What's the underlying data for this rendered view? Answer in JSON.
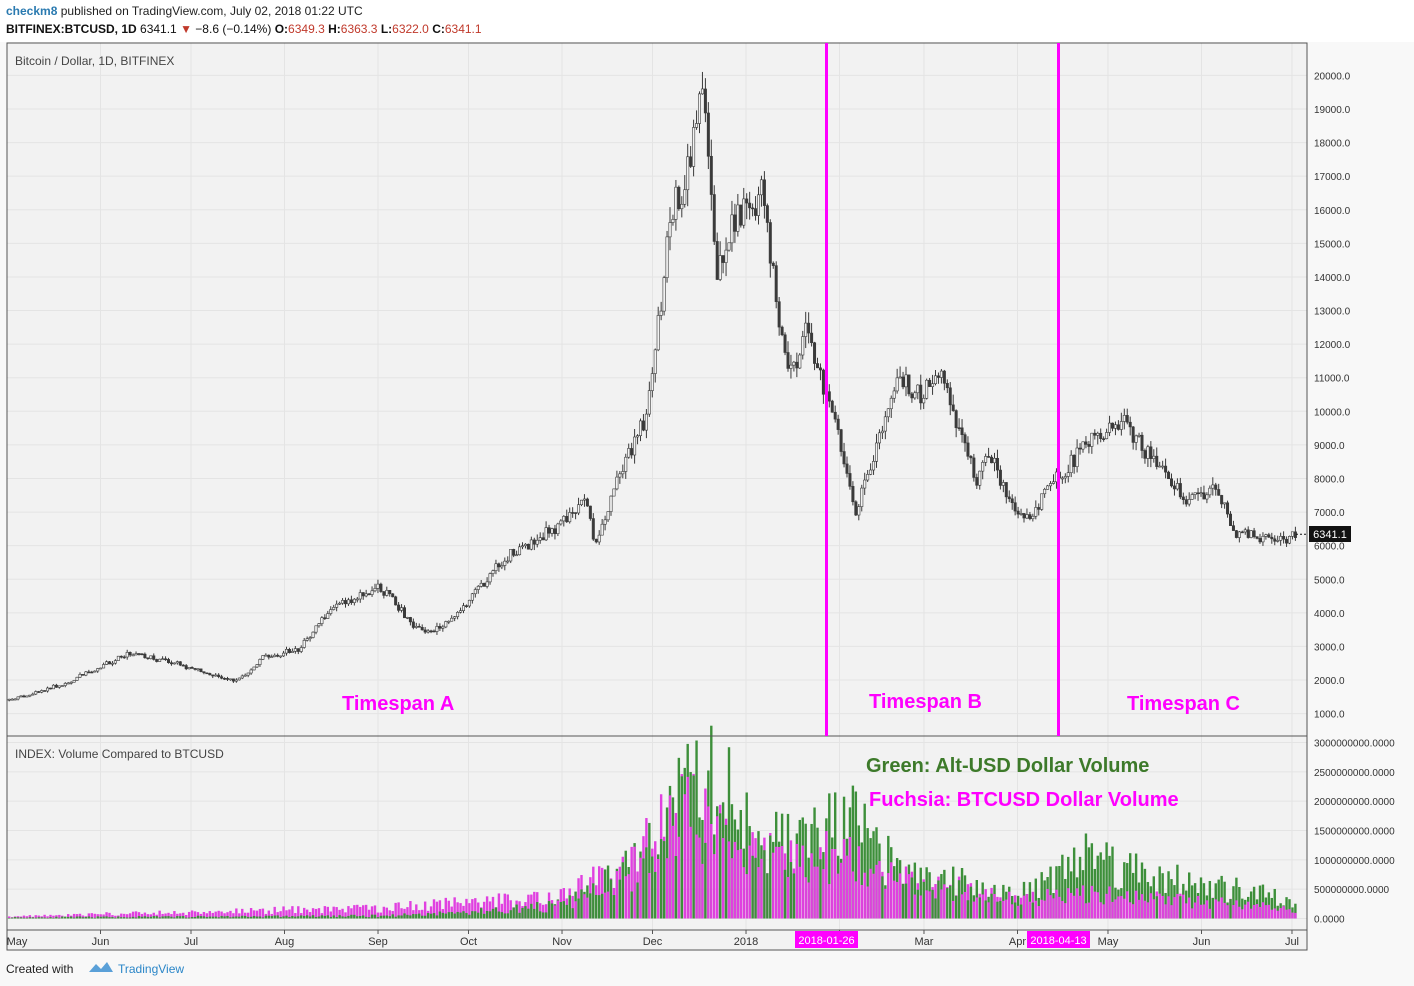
{
  "header": {
    "user": "checkm8",
    "published": "published on TradingView.com, July 02, 2018 01:22 UTC",
    "symbol": "BITFINEX:BTCUSD, 1D",
    "last": "6341.1",
    "change_arrow": "▼",
    "change": "−8.6 (−0.14%)",
    "o_label": "O:",
    "o_val": "6349.3",
    "h_label": "H:",
    "h_val": "6363.3",
    "l_label": "L:",
    "l_val": "6322.0",
    "c_label": "C:",
    "c_val": "6341.1"
  },
  "main_pane": {
    "title": "Bitcoin / Dollar, 1D, BITFINEX",
    "price_label": "6341.1",
    "annotations": [
      "Timespan A",
      "Timespan B",
      "Timespan C"
    ],
    "vline_dates": [
      "2018-01-26",
      "2018-04-13"
    ]
  },
  "volume_pane": {
    "title": "INDEX: Volume Compared to BTCUSD",
    "legend_green": "Green: Alt-USD Dollar Volume",
    "legend_fuchsia": "Fuchsia: BTCUSD Dollar Volume"
  },
  "footer": {
    "created": "Created with",
    "brand": "TradingView"
  },
  "colors": {
    "candle": "#3a3a3a",
    "annotation": "#ff00ff",
    "alt_volume": "#3d8f3a",
    "btc_volume": "#e040e0",
    "vline": "#ff00ff"
  },
  "chart_data": [
    {
      "type": "line",
      "title": "Bitcoin / Dollar, 1D, BITFINEX",
      "x_ticks": [
        "May",
        "Jun",
        "Jul",
        "Aug",
        "Sep",
        "Oct",
        "Nov",
        "Dec",
        "2018",
        "Feb",
        "Mar",
        "Apr",
        "May",
        "Jun",
        "Jul"
      ],
      "y_ticks": [
        "1000.0",
        "2000.0",
        "3000.0",
        "4000.0",
        "5000.0",
        "6000.0",
        "7000.0",
        "8000.0",
        "9000.0",
        "10000.0",
        "11000.0",
        "12000.0",
        "13000.0",
        "14000.0",
        "15000.0",
        "16000.0",
        "17000.0",
        "18000.0",
        "19000.0",
        "20000.0"
      ],
      "ylim": [
        0,
        20600
      ],
      "series": [
        {
          "x": [
            "2017-05-01",
            "2017-05-20",
            "2017-06-10",
            "2017-06-25",
            "2017-07-16",
            "2017-07-25",
            "2017-08-05",
            "2017-08-17",
            "2017-09-01",
            "2017-09-15",
            "2017-09-25",
            "2017-10-12",
            "2017-10-20",
            "2017-11-01",
            "2017-11-08",
            "2017-11-12",
            "2017-11-20",
            "2017-11-29",
            "2017-12-07",
            "2017-12-12",
            "2017-12-17",
            "2017-12-22",
            "2017-12-27",
            "2018-01-06",
            "2018-01-12",
            "2018-01-16",
            "2018-01-20",
            "2018-02-01",
            "2018-02-06",
            "2018-02-20",
            "2018-02-28",
            "2018-03-05",
            "2018-03-18",
            "2018-03-22",
            "2018-04-01",
            "2018-04-06",
            "2018-04-13",
            "2018-04-22",
            "2018-05-05",
            "2018-05-15",
            "2018-05-28",
            "2018-06-05",
            "2018-06-12",
            "2018-06-24",
            "2018-07-02"
          ],
          "y": [
            1400,
            1900,
            2800,
            2500,
            1950,
            2700,
            2900,
            4200,
            4800,
            3400,
            3750,
            5600,
            6000,
            6700,
            7500,
            6000,
            8200,
            10000,
            16000,
            17000,
            19700,
            14000,
            15500,
            16500,
            12500,
            11000,
            12500,
            9000,
            7000,
            11000,
            10500,
            11300,
            8000,
            8800,
            6800,
            7000,
            7900,
            8900,
            9800,
            8600,
            7300,
            7700,
            6400,
            6100,
            6341.1
          ]
        }
      ]
    },
    {
      "type": "bar",
      "title": "INDEX: Volume Compared to BTCUSD",
      "y_ticks": [
        "0.0000",
        "500000000.0000",
        "1000000000.0000",
        "1500000000.0000",
        "2000000000.0000",
        "2500000000.0000",
        "3000000000.0000"
      ],
      "ylim": [
        0,
        3000000000
      ],
      "series": [
        {
          "name": "Alt-USD Dollar Volume",
          "x": [
            "2017-05-01",
            "2017-09-01",
            "2017-10-01",
            "2017-11-01",
            "2017-11-20",
            "2017-12-01",
            "2017-12-10",
            "2017-12-20",
            "2018-01-05",
            "2018-01-15",
            "2018-02-05",
            "2018-02-15",
            "2018-03-01",
            "2018-03-15",
            "2018-04-01",
            "2018-04-20",
            "2018-05-01",
            "2018-05-15",
            "2018-06-01",
            "2018-06-15",
            "2018-07-02"
          ],
          "values": [
            20000000,
            50000000,
            120000000,
            250000000,
            800000000,
            1300000000,
            2200000000,
            2600000000,
            1600000000,
            1400000000,
            1800000000,
            1100000000,
            700000000,
            650000000,
            400000000,
            1200000000,
            1100000000,
            800000000,
            600000000,
            500000000,
            300000000
          ]
        },
        {
          "name": "BTCUSD Dollar Volume",
          "x": [
            "2017-05-01",
            "2017-09-01",
            "2017-10-01",
            "2017-11-01",
            "2017-11-20",
            "2017-12-01",
            "2017-12-10",
            "2017-12-20",
            "2018-01-05",
            "2018-01-15",
            "2018-02-05",
            "2018-02-15",
            "2018-03-01",
            "2018-03-15",
            "2018-04-01",
            "2018-04-20",
            "2018-05-01",
            "2018-05-15",
            "2018-06-01",
            "2018-06-15",
            "2018-07-02"
          ],
          "values": [
            40000000,
            200000000,
            300000000,
            450000000,
            900000000,
            1600000000,
            2100000000,
            1700000000,
            1200000000,
            1100000000,
            1200000000,
            800000000,
            600000000,
            550000000,
            350000000,
            500000000,
            450000000,
            400000000,
            300000000,
            250000000,
            150000000
          ]
        }
      ]
    }
  ]
}
